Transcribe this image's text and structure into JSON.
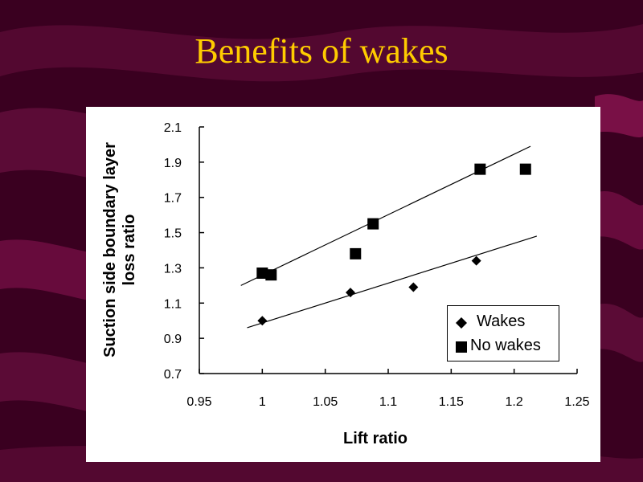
{
  "slide": {
    "title": "Benefits of wakes",
    "colors": {
      "background": "#3a0020",
      "stripe": "#7a1048",
      "title": "#ffcc00"
    }
  },
  "chart_data": {
    "type": "scatter",
    "title": "",
    "xlabel": "Lift ratio",
    "ylabel": "Suction side boundary layer loss ratio",
    "xlim": [
      0.95,
      1.25
    ],
    "ylim": [
      0.7,
      2.1
    ],
    "xticks": [
      "0.95",
      "1",
      "1.05",
      "1.1",
      "1.15",
      "1.2",
      "1.25"
    ],
    "yticks": [
      "0.7",
      "0.9",
      "1.1",
      "1.3",
      "1.5",
      "1.7",
      "1.9",
      "2.1"
    ],
    "grid": false,
    "legend_position": "bottom-right",
    "series": [
      {
        "name": "Wakes",
        "marker": "diamond",
        "points": [
          [
            1.0,
            1.0
          ],
          [
            1.07,
            1.16
          ],
          [
            1.12,
            1.19
          ],
          [
            1.17,
            1.34
          ]
        ],
        "trendline": [
          [
            0.988,
            0.96
          ],
          [
            1.218,
            1.48
          ]
        ]
      },
      {
        "name": "No wakes",
        "marker": "square",
        "points": [
          [
            1.0,
            1.27
          ],
          [
            1.007,
            1.26
          ],
          [
            1.074,
            1.38
          ],
          [
            1.088,
            1.55
          ],
          [
            1.173,
            1.86
          ],
          [
            1.209,
            1.86
          ]
        ],
        "trendline": [
          [
            0.983,
            1.2
          ],
          [
            1.213,
            1.99
          ]
        ]
      }
    ]
  }
}
